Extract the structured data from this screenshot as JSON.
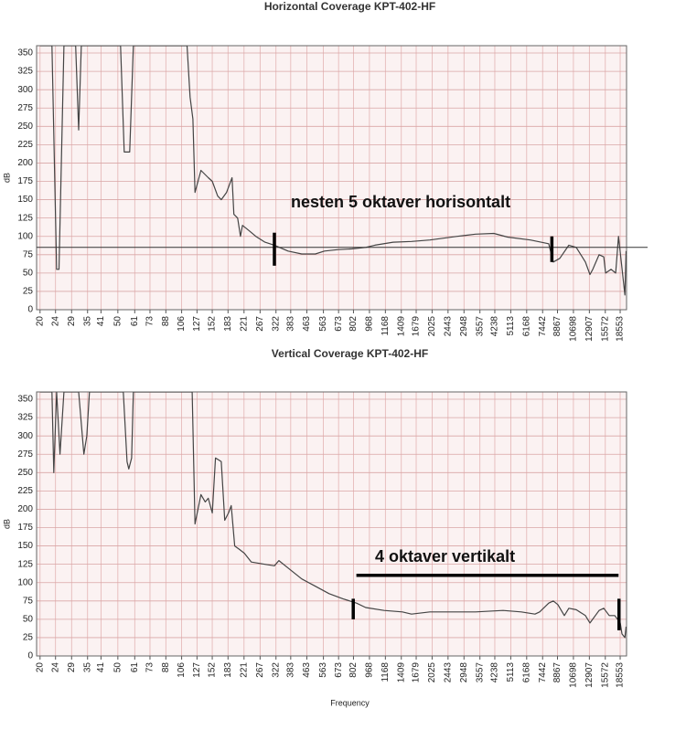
{
  "chart_data": [
    {
      "type": "line",
      "title": "Horizontal Coverage KPT-402-HF",
      "ylabel": "dB",
      "xscale": "log",
      "grid": true,
      "color": "#444444",
      "xlim": [
        19.2,
        20000
      ],
      "ylim": [
        0,
        360
      ],
      "xticks": [
        20,
        24,
        29,
        35,
        41,
        50,
        61,
        73,
        88,
        106,
        127,
        152,
        183,
        221,
        267,
        322,
        383,
        463,
        563,
        673,
        802,
        968,
        1168,
        1409,
        1679,
        2025,
        2443,
        2948,
        3557,
        4238,
        5113,
        6168,
        7442,
        8867,
        10698,
        12907,
        15572,
        18553
      ],
      "yticks": [
        0,
        25,
        50,
        75,
        100,
        125,
        150,
        175,
        200,
        225,
        250,
        275,
        300,
        325,
        350
      ],
      "x": [
        20,
        23,
        24.3,
        25,
        26.5,
        30.4,
        31.5,
        32.5,
        51.6,
        53.9,
        57.5,
        60,
        113,
        117,
        121,
        124,
        133,
        145,
        152,
        162,
        169,
        180,
        192,
        196,
        205,
        212,
        217,
        234,
        254,
        283,
        316,
        371,
        436,
        512,
        570,
        671,
        789,
        926,
        1032,
        1280,
        1589,
        1972,
        2723,
        3377,
        4191,
        4926,
        6443,
        7993,
        8437,
        9105,
        10140,
        11060,
        12320,
        13000,
        13440,
        14480,
        15290,
        15630,
        16670,
        17600,
        18190,
        19620,
        19900
      ],
      "values": [
        360,
        360,
        55,
        55,
        360,
        360,
        245,
        360,
        360,
        215,
        215,
        360,
        360,
        290,
        260,
        160,
        190,
        180,
        175,
        155,
        150,
        160,
        180,
        130,
        125,
        100,
        115,
        108,
        100,
        92,
        88,
        80,
        76,
        76,
        80,
        82,
        83,
        85,
        88,
        92,
        93,
        95,
        100,
        103,
        104,
        99,
        95,
        90,
        65,
        70,
        88,
        85,
        65,
        48,
        55,
        75,
        72,
        50,
        55,
        50,
        100,
        20,
        80
      ],
      "reference_line": 85,
      "markers": [
        {
          "x": [
            316,
            316
          ],
          "y": [
            60,
            105
          ]
        },
        {
          "x": [
            8300,
            8300
          ],
          "y": [
            65,
            100
          ]
        }
      ],
      "annotation": "nesten 5 oktaver horisontalt"
    },
    {
      "type": "line",
      "title": "Vertical Coverage KPT-402-HF",
      "ylabel": "dB",
      "xlabel": "Frequency",
      "xscale": "log",
      "grid": true,
      "color": "#444444",
      "xlim": [
        19.2,
        20000
      ],
      "ylim": [
        0,
        360
      ],
      "xticks": [
        20,
        24,
        29,
        35,
        41,
        50,
        61,
        73,
        88,
        106,
        127,
        152,
        183,
        221,
        267,
        322,
        383,
        463,
        563,
        673,
        802,
        968,
        1168,
        1409,
        1679,
        2025,
        2443,
        2948,
        3557,
        4238,
        5113,
        6168,
        7442,
        8867,
        10698,
        12907,
        15572,
        18553
      ],
      "yticks": [
        0,
        25,
        50,
        75,
        100,
        125,
        150,
        175,
        200,
        225,
        250,
        275,
        300,
        325,
        350
      ],
      "x": [
        20,
        23,
        23.5,
        24.3,
        25.3,
        26.5,
        31.5,
        33.5,
        34.7,
        35.8,
        53.3,
        55.7,
        56.9,
        58.8,
        60,
        120,
        124,
        133,
        140,
        145,
        152,
        158,
        169,
        176,
        184,
        190,
        198,
        210,
        222,
        241,
        283,
        316,
        333,
        371,
        436,
        512,
        602,
        708,
        832,
        926,
        1150,
        1427,
        1589,
        1972,
        2723,
        3377,
        4669,
        5785,
        6801,
        7184,
        7993,
        8437,
        8909,
        9614,
        10140,
        11060,
        12320,
        13000,
        14480,
        15290,
        16320,
        17410,
        18560,
        18950,
        19620,
        19900
      ],
      "values": [
        360,
        360,
        250,
        360,
        275,
        360,
        360,
        275,
        300,
        360,
        360,
        265,
        255,
        270,
        360,
        360,
        180,
        220,
        210,
        215,
        195,
        270,
        265,
        185,
        195,
        205,
        150,
        145,
        140,
        128,
        125,
        123,
        130,
        120,
        105,
        95,
        85,
        78,
        72,
        66,
        62,
        60,
        57,
        60,
        60,
        60,
        62,
        60,
        57,
        60,
        72,
        75,
        70,
        55,
        65,
        63,
        55,
        45,
        62,
        65,
        55,
        55,
        45,
        30,
        25,
        40
      ],
      "markers": [
        {
          "x": [
            830,
            18200
          ],
          "y": [
            110,
            110
          ]
        },
        {
          "x": [
            800,
            800
          ],
          "y": [
            50,
            78
          ]
        },
        {
          "x": [
            18300,
            18300
          ],
          "y": [
            35,
            78
          ]
        }
      ],
      "annotation": "4 oktaver vertikalt"
    }
  ]
}
